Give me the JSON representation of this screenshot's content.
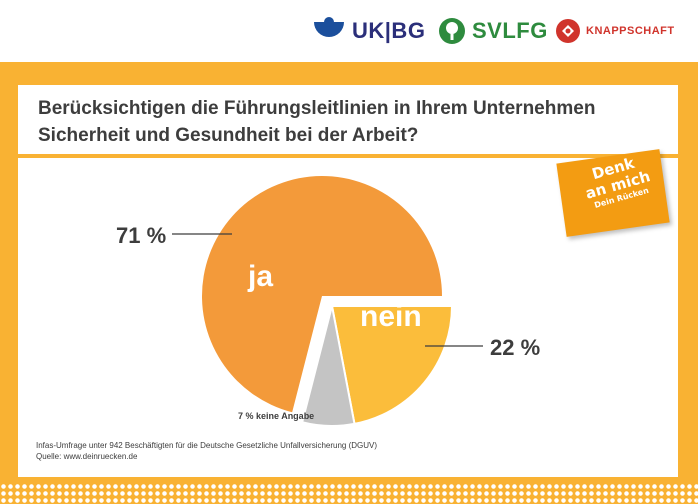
{
  "header": {
    "logos": [
      {
        "name": "UK|BG",
        "icon": "ukbg-logo-icon"
      },
      {
        "name": "SVLFG",
        "icon": "svlfg-tree-icon"
      },
      {
        "name": "KNAPPSCHAFT",
        "icon": "knappschaft-logo-icon"
      }
    ]
  },
  "question": {
    "line1": "Berücksichtigen die Führungsleitlinien in Ihrem Unternehmen",
    "line2": "Sicherheit und Gesundheit bei der Arbeit?"
  },
  "sticker": {
    "line1": "Denk",
    "line2": "an mich",
    "line3": "Dein Rücken"
  },
  "chart_data": {
    "type": "pie",
    "title": "Berücksichtigen die Führungsleitlinien in Ihrem Unternehmen Sicherheit und Gesundheit bei der Arbeit?",
    "slices": [
      {
        "label": "ja",
        "value": 71,
        "value_label": "71 %",
        "color": "#f39a3a"
      },
      {
        "label": "nein",
        "value": 22,
        "value_label": "22 %",
        "color": "#fbbd3b"
      },
      {
        "label": "keine Angabe",
        "value": 7,
        "value_label": "7 % keine Angabe",
        "color": "#c4c4c4"
      }
    ]
  },
  "source": {
    "line1": "Infas-Umfrage unter 942 Beschäftigten für die Deutsche Gesetzliche Unfallversicherung (DGUV)",
    "line2": "Quelle: www.deinruecken.de"
  },
  "colors": {
    "frame": "#f9b233",
    "ja": "#f39a3a",
    "nein": "#fbbd3b",
    "keine": "#c4c4c4",
    "text": "#3d3d3d"
  }
}
